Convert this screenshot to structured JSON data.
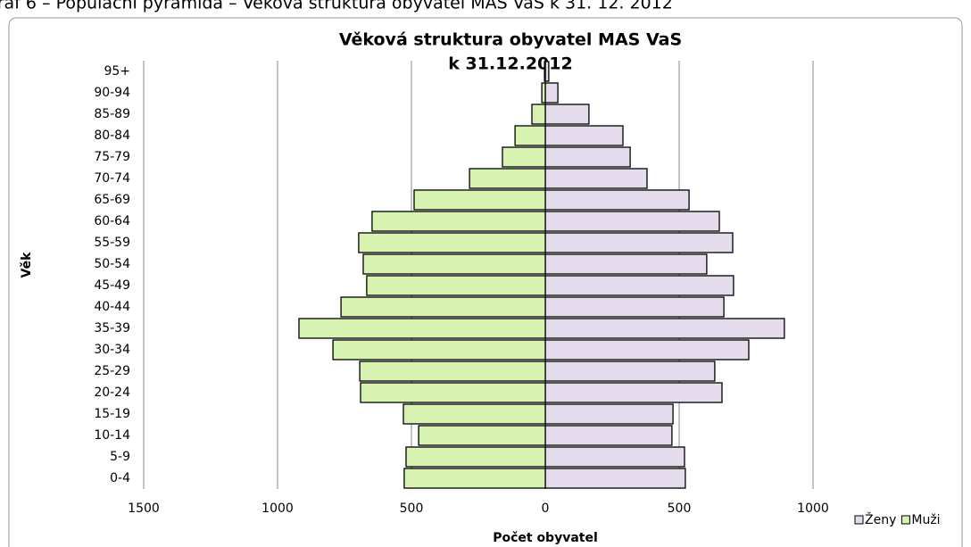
{
  "caption": "Graf 6 – Populační pyramida – Věková struktura obyvatel MAS VaS k 31. 12. 2012",
  "chart_data": {
    "type": "pyramid",
    "title": [
      "Věková struktura obyvatel MAS VaS",
      "k 31.12.2012"
    ],
    "x_label": "Počet obyvatel",
    "y_label": "Věk",
    "categories": [
      "0-4",
      "5-9",
      "10-14",
      "15-19",
      "20-24",
      "25-29",
      "30-34",
      "35-39",
      "40-44",
      "45-49",
      "50-54",
      "55-59",
      "60-64",
      "65-69",
      "70-74",
      "75-79",
      "80-84",
      "85-89",
      "90-94",
      "95+"
    ],
    "series": [
      {
        "name": "Ženy",
        "color": "#e4dcec",
        "values": [
          523,
          520,
          473,
          477,
          660,
          633,
          760,
          893,
          667,
          703,
          603,
          700,
          650,
          537,
          380,
          317,
          290,
          163,
          47,
          13
        ]
      },
      {
        "name": "Muži",
        "color": "#d8f2b2",
        "values": [
          -527,
          -520,
          -473,
          -530,
          -690,
          -693,
          -793,
          -920,
          -763,
          -667,
          -680,
          -697,
          -647,
          -490,
          -283,
          -160,
          -113,
          -50,
          -13,
          -3
        ]
      }
    ],
    "xlim": [
      -1500,
      1000
    ],
    "xticks": [
      {
        "value": -1500,
        "label": "1500"
      },
      {
        "value": -1000,
        "label": "1000"
      },
      {
        "value": -500,
        "label": "500"
      },
      0,
      500,
      1000
    ],
    "grid": true,
    "legend": "bottom-right"
  }
}
